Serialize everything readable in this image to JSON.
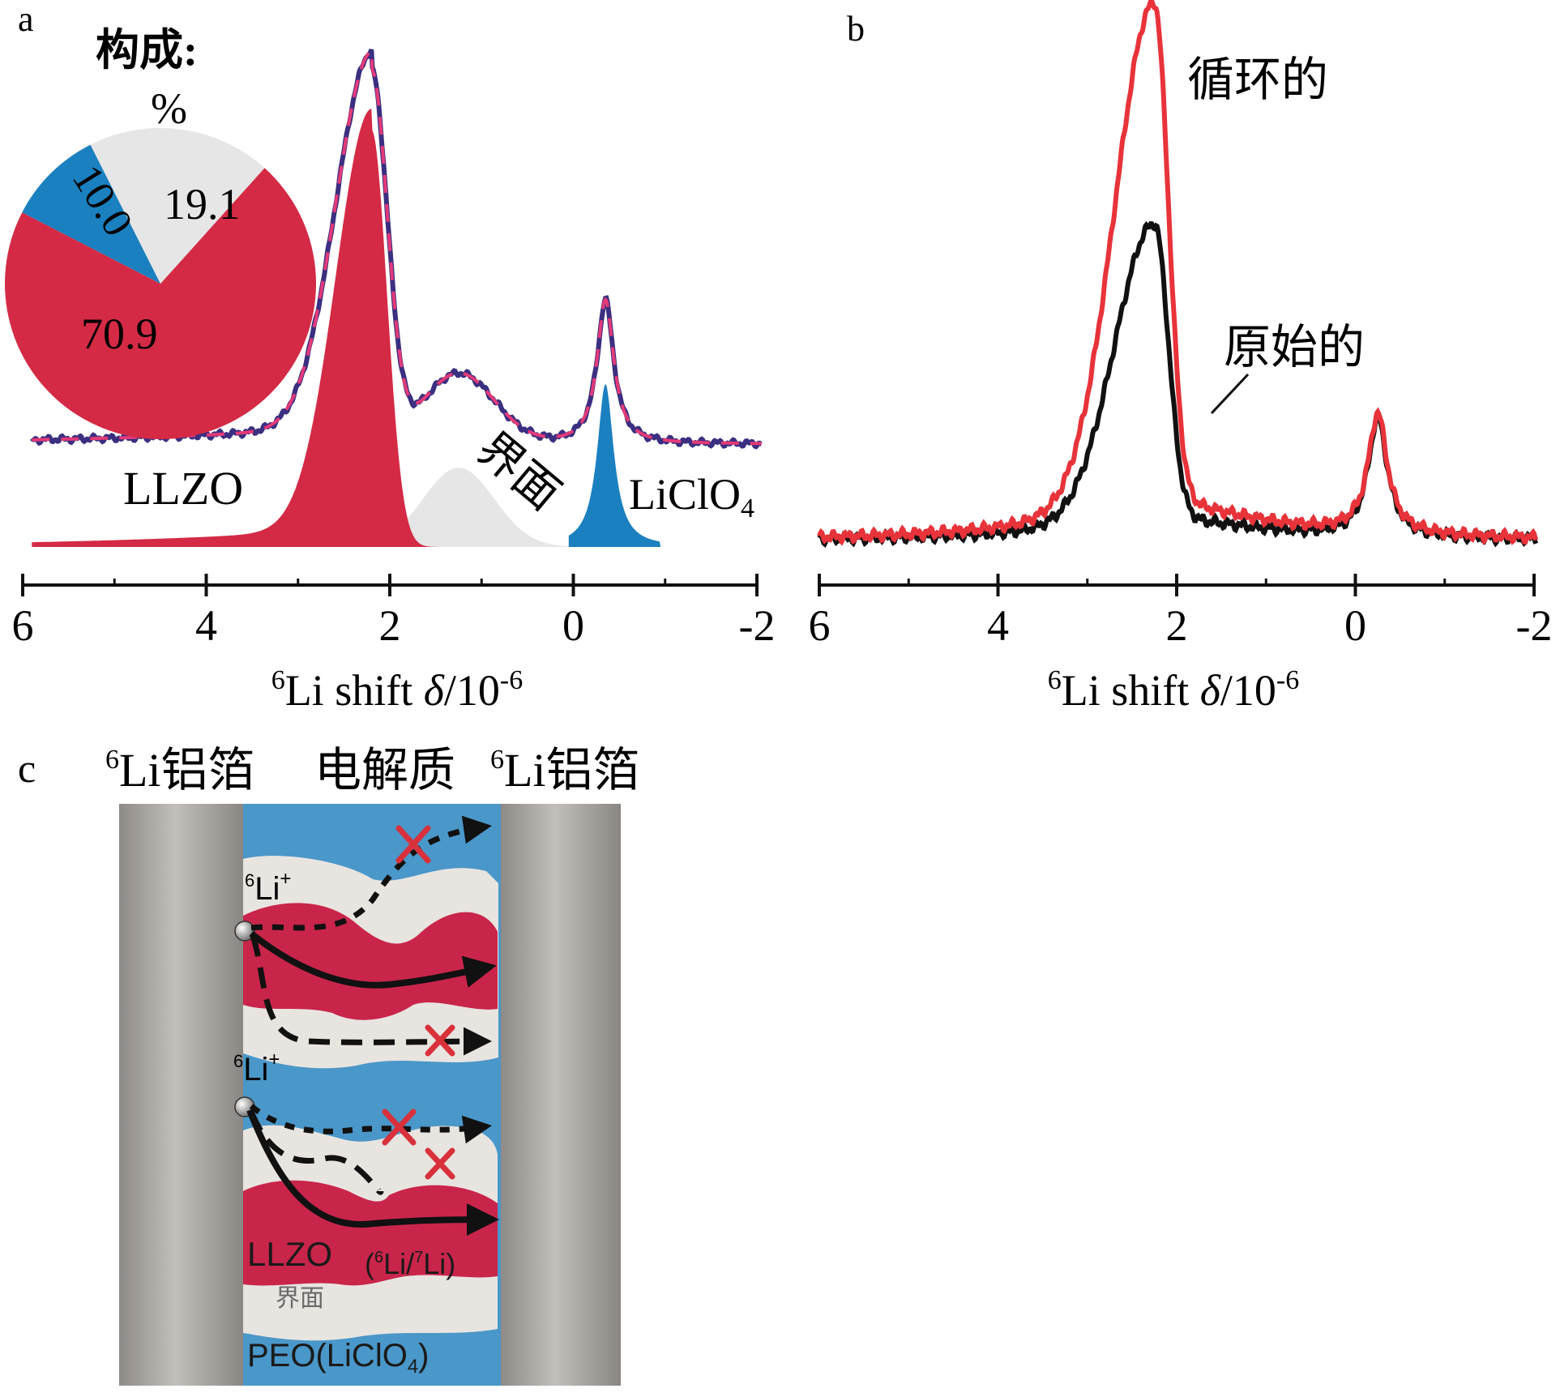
{
  "chart_data": [
    {
      "panel": "a",
      "type": "line",
      "xlabel_prefix": "6",
      "xlabel_main": "Li shift ",
      "xlabel_delta": "δ",
      "xlabel_unit": "/10",
      "xlabel_exp": "-6",
      "xlim": [
        6,
        -2
      ],
      "ticks": [
        "6",
        "4",
        "2",
        "0",
        "-2"
      ],
      "tick_values": [
        6,
        4,
        2,
        0,
        -2
      ],
      "components": [
        {
          "name": "LLZO",
          "label": "LLZO",
          "color": "#d42a45",
          "center": 2.2,
          "height": 1.0
        },
        {
          "name": "界面",
          "label": "界面",
          "color": "#e6e6e6",
          "center": 1.25,
          "height": 0.19
        },
        {
          "name": "LiClO4",
          "label_main": "LiClO",
          "label_sub": "4",
          "color": "#1b80c0",
          "center": -0.35,
          "height": 0.39
        }
      ],
      "curve_colors": {
        "measured": "#3a2f80",
        "fit": "#e33a78"
      },
      "inset_pie": {
        "title_line1": "构成:",
        "title_line2": "%",
        "slices": [
          {
            "label": "LLZO",
            "value": 70.9,
            "value_label": "70.9",
            "color": "#d42a45"
          },
          {
            "label": "LiClO4",
            "value": 10.0,
            "value_label": "10.0",
            "color": "#1b80c0"
          },
          {
            "label": "界面",
            "value": 19.1,
            "value_label": "19.1",
            "color": "#e6e6e6"
          }
        ]
      }
    },
    {
      "panel": "b",
      "type": "line",
      "xlabel_prefix": "6",
      "xlabel_main": "Li shift ",
      "xlabel_delta": "δ",
      "xlabel_unit": "/10",
      "xlabel_exp": "-6",
      "xlim": [
        6,
        -2
      ],
      "ticks": [
        "6",
        "4",
        "2",
        "0",
        "-2"
      ],
      "tick_values": [
        6,
        4,
        2,
        0,
        -2
      ],
      "series": [
        {
          "name": "循环的",
          "color": "#e8333a",
          "peak_main": 2.25,
          "peak_small": -0.25,
          "main_height": 1.0,
          "small_height": 0.24
        },
        {
          "name": "原始的",
          "color": "#111111",
          "peak_main": 2.25,
          "peak_small": -0.25,
          "main_height": 0.59,
          "small_height": 0.24
        }
      ]
    }
  ],
  "panel_labels": {
    "a": "a",
    "b": "b",
    "c": "c"
  },
  "schematic": {
    "header_left_sup": "6",
    "header_left": "Li铝箔",
    "header_mid": "电解质",
    "header_right_sup": "6",
    "header_right": "Li铝箔",
    "ion1_sup": "6",
    "ion1": "Li",
    "ion1_charge": "+",
    "ion2_sup": "6",
    "ion2": "Li",
    "ion2_charge": "+",
    "llzo_label": "LLZO",
    "isotope_label_open": "(",
    "isotope_sup1": "6",
    "isotope_mid": "Li/",
    "isotope_sup2": "7",
    "isotope_end": "Li)",
    "interface_label": "界面",
    "peo_label": "PEO(LiClO",
    "peo_sub": "4",
    "peo_close": ")",
    "colors": {
      "foil": "#a8a4a0",
      "electrolyte": "#4a97c9",
      "llzo": "#c9254a",
      "interface": "#e8e4e0"
    }
  }
}
